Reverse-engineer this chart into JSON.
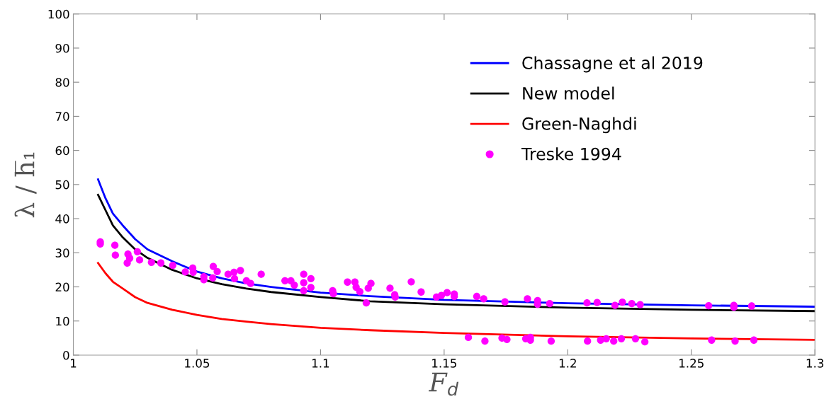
{
  "chart_data": {
    "type": "line",
    "xlabel": "F$_{d}$",
    "ylabel": "λ / h̅₁",
    "xlim": [
      1,
      1.3
    ],
    "ylim": [
      0,
      100
    ],
    "xticks": [
      1,
      1.05,
      1.1,
      1.15,
      1.2,
      1.25,
      1.3
    ],
    "yticks": [
      0,
      10,
      20,
      30,
      40,
      50,
      60,
      70,
      80,
      90,
      100
    ],
    "grid": false,
    "legend": "top right",
    "line_style": "solid",
    "series": [
      {
        "name": "Chassagne et al 2019",
        "color": "#0000ff",
        "x": [
          1.01,
          1.013,
          1.016,
          1.02,
          1.025,
          1.03,
          1.04,
          1.05,
          1.06,
          1.07,
          1.08,
          1.1,
          1.12,
          1.15,
          1.2,
          1.25,
          1.3
        ],
        "values": [
          51.5,
          46,
          41.5,
          38,
          34,
          31,
          27.5,
          24.5,
          22.5,
          21,
          20,
          18.3,
          17.3,
          16.2,
          15.2,
          14.6,
          14.2
        ]
      },
      {
        "name": "New model",
        "color": "#000000",
        "x": [
          1.01,
          1.013,
          1.016,
          1.02,
          1.025,
          1.03,
          1.04,
          1.05,
          1.06,
          1.07,
          1.08,
          1.1,
          1.12,
          1.15,
          1.2,
          1.25,
          1.3
        ],
        "values": [
          47,
          42.5,
          38,
          34.5,
          31,
          28.5,
          25,
          22.5,
          20.8,
          19.5,
          18.5,
          17.0,
          15.8,
          14.9,
          13.9,
          13.3,
          12.9
        ]
      },
      {
        "name": "Green-Naghdi",
        "color": "#ff0000",
        "x": [
          1.01,
          1.013,
          1.016,
          1.02,
          1.025,
          1.03,
          1.04,
          1.05,
          1.06,
          1.07,
          1.08,
          1.1,
          1.12,
          1.15,
          1.2,
          1.25,
          1.3
        ],
        "values": [
          27,
          24,
          21.5,
          19.5,
          17,
          15.3,
          13.3,
          11.8,
          10.6,
          9.8,
          9.1,
          8.0,
          7.3,
          6.5,
          5.5,
          4.9,
          4.5
        ]
      },
      {
        "name": "Treske 1994",
        "color": "#ff00ff",
        "type": "scatter",
        "marker": "circle",
        "x": [
          1.0109,
          1.0109,
          1.0168,
          1.017,
          1.0218,
          1.0221,
          1.0228,
          1.0259,
          1.0268,
          1.0316,
          1.0354,
          1.0402,
          1.0453,
          1.0483,
          1.0485,
          1.0528,
          1.0528,
          1.0566,
          1.0582,
          1.0564,
          1.0626,
          1.065,
          1.0652,
          1.0676,
          1.07,
          1.0717,
          1.076,
          1.0856,
          1.088,
          1.0894,
          1.0932,
          1.0932,
          1.0932,
          1.0961,
          1.0961,
          1.1049,
          1.1052,
          1.1109,
          1.1139,
          1.1144,
          1.1159,
          1.1185,
          1.1193,
          1.1204,
          1.1281,
          1.13,
          1.1302,
          1.1367,
          1.1407,
          1.1469,
          1.1489,
          1.1512,
          1.1541,
          1.1541,
          1.1632,
          1.166,
          1.1746,
          1.1837,
          1.1878,
          1.1878,
          1.1927,
          1.2078,
          1.2119,
          1.2191,
          1.2221,
          1.2259,
          1.2293,
          1.257,
          1.2672,
          1.2672,
          1.2744,
          1.1598,
          1.1665,
          1.1734,
          1.1754,
          1.183,
          1.1849,
          1.1849,
          1.1933,
          1.208,
          1.2133,
          1.2156,
          1.2186,
          1.2217,
          1.2274,
          1.2312,
          1.2582,
          1.2677,
          1.2753
        ],
        "values": [
          32.6,
          33.2,
          32.2,
          29.3,
          27.0,
          29.6,
          28.4,
          30.3,
          27.9,
          27.2,
          27.0,
          26.3,
          24.4,
          25.5,
          24.3,
          23.0,
          22.1,
          26.0,
          24.5,
          22.6,
          23.7,
          24.3,
          22.4,
          24.8,
          21.8,
          21.0,
          23.7,
          21.8,
          21.8,
          20.5,
          23.7,
          21.2,
          18.9,
          22.4,
          19.8,
          18.9,
          18.0,
          21.4,
          21.4,
          19.9,
          18.6,
          15.3,
          19.6,
          21.0,
          19.6,
          17.7,
          17.0,
          21.5,
          18.5,
          17.0,
          17.5,
          18.3,
          17.9,
          17.2,
          17.2,
          16.5,
          15.6,
          16.5,
          16.0,
          14.9,
          15.1,
          15.3,
          15.4,
          14.6,
          15.5,
          15.1,
          14.8,
          14.5,
          14.6,
          14.0,
          14.4,
          5.2,
          4.1,
          5.0,
          4.6,
          4.8,
          5.2,
          4.4,
          4.1,
          4.1,
          4.4,
          4.8,
          4.1,
          4.8,
          4.8,
          3.9,
          4.4,
          4.1,
          4.4
        ]
      }
    ]
  }
}
